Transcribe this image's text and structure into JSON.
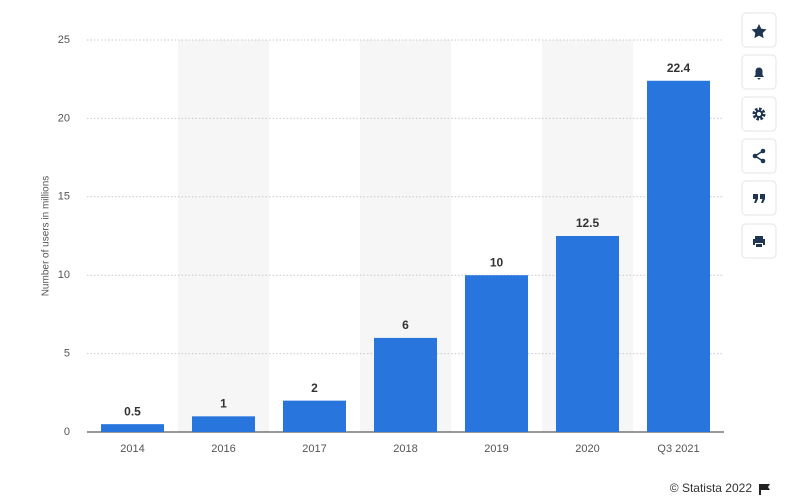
{
  "chart_data": {
    "type": "bar",
    "y_label": "Number of users in millions",
    "categories": [
      "2014",
      "2016",
      "2017",
      "2018",
      "2019",
      "2020",
      "Q3 2021"
    ],
    "values": [
      0.5,
      1,
      2,
      6,
      10,
      12.5,
      22.4
    ],
    "color": "#2876dd",
    "ylim": [
      0,
      25
    ],
    "yticks": [
      0,
      5,
      10,
      15,
      20,
      25
    ],
    "grid": true,
    "source": "© Statista 2022"
  }
}
